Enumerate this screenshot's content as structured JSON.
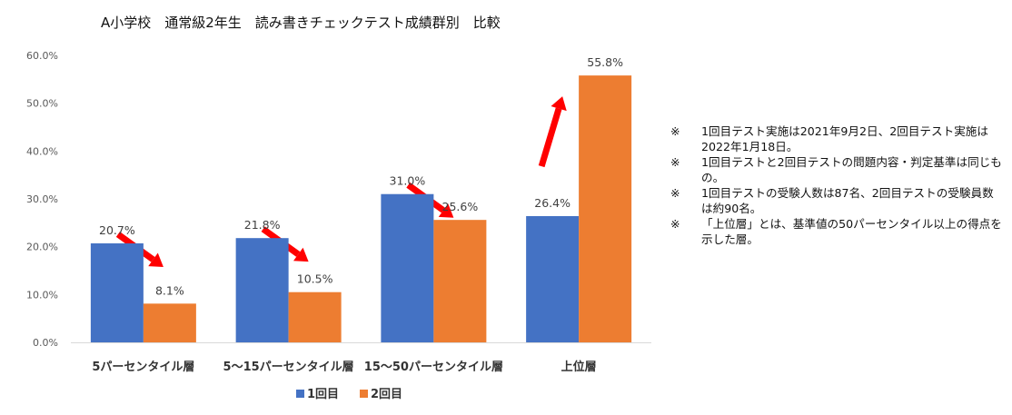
{
  "chart_data": {
    "type": "bar",
    "title": "A小学校　通常級2年生　読み書きチェックテスト成績群別　比較",
    "categories": [
      "5パーセンタイル層",
      "5～15パーセンタイル層",
      "15～50パーセンタイル層",
      "上位層"
    ],
    "series": [
      {
        "name": "1回目",
        "color": "#4472C4",
        "values": [
          20.7,
          21.8,
          31.0,
          26.4
        ],
        "labels": [
          "20.7%",
          "21.8%",
          "31.0%",
          "26.4%"
        ]
      },
      {
        "name": "2回目",
        "color": "#ED7D31",
        "values": [
          8.1,
          10.5,
          25.6,
          55.8
        ],
        "labels": [
          "8.1%",
          "10.5%",
          "25.6%",
          "55.8%"
        ]
      }
    ],
    "yticks": [
      "0.0%",
      "10.0%",
      "20.0%",
      "30.0%",
      "40.0%",
      "50.0%",
      "60.0%"
    ],
    "ylim": [
      0,
      60
    ],
    "xlabel": "",
    "ylabel": "",
    "legend": "bottom",
    "grid": false,
    "arrow_color": "#FF0000",
    "arrows": [
      "down",
      "down",
      "down",
      "up"
    ]
  },
  "notes": [
    {
      "mark": "※",
      "text": "1回目テスト実施は2021年9月2日、2回目テスト実施は2022年1月18日。"
    },
    {
      "mark": "※",
      "text": "1回目テストと2回目テストの問題内容・判定基準は同じもの。"
    },
    {
      "mark": "※",
      "text": "1回目テストの受験人数は87名、2回目テストの受験員数は約90名。"
    },
    {
      "mark": "※",
      "text": "「上位層」とは、基準値の50パーセンタイル以上の得点を示した層。"
    }
  ]
}
